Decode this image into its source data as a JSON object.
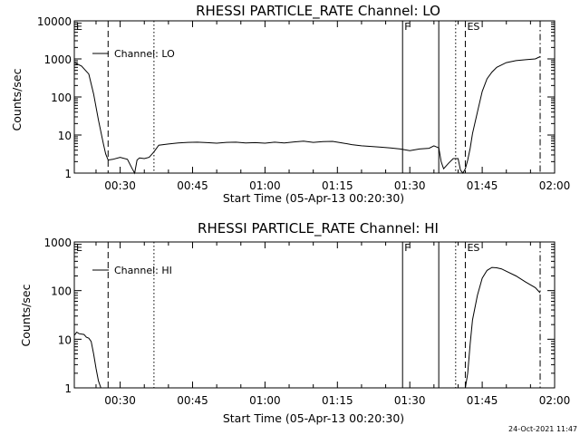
{
  "footer": {
    "timestamp": "24-Oct-2021 11:47"
  },
  "chart_data": [
    {
      "type": "line",
      "title": "RHESSI PARTICLE_RATE Channel: LO",
      "xlabel": "Start Time (05-Apr-13 00:20:30)",
      "ylabel": "Counts/sec",
      "yscale": "log",
      "xlim": [
        "00:20:30",
        "02:00:00"
      ],
      "ylim": [
        1,
        10000
      ],
      "x_ticks": [
        "00:30",
        "00:45",
        "01:00",
        "01:15",
        "01:30",
        "01:45",
        "02:00"
      ],
      "y_ticks": [
        "1",
        "10",
        "100",
        "1000",
        "10000"
      ],
      "legend": "Channel: LO",
      "event_markers": [
        {
          "time": "00:20:30",
          "label": "E",
          "style": "solid"
        },
        {
          "time": "00:27:30",
          "label": "",
          "style": "dashed"
        },
        {
          "time": "00:37:00",
          "label": "",
          "style": "dotted"
        },
        {
          "time": "01:28:30",
          "label": "F",
          "style": "solid"
        },
        {
          "time": "01:36:00",
          "label": "",
          "style": "solid"
        },
        {
          "time": "01:39:30",
          "label": "",
          "style": "dotted"
        },
        {
          "time": "01:41:30",
          "label": "ES",
          "style": "dashed"
        },
        {
          "time": "01:57:00",
          "label": "",
          "style": "dashdot"
        }
      ],
      "series": [
        {
          "name": "Channel: LO",
          "x": [
            "00:20:30",
            "00:22:00",
            "00:23:30",
            "00:24:30",
            "00:25:30",
            "00:26:30",
            "00:27:00",
            "00:27:30",
            "00:28:30",
            "00:30:00",
            "00:31:30",
            "00:32:30",
            "00:33:00",
            "00:33:30",
            "00:34:00",
            "00:35:00",
            "00:36:00",
            "00:37:00",
            "00:38:00",
            "00:40:00",
            "00:42:00",
            "00:44:00",
            "00:46:00",
            "00:48:00",
            "00:50:00",
            "00:52:00",
            "00:54:00",
            "00:56:00",
            "00:58:00",
            "01:00:00",
            "01:02:00",
            "01:04:00",
            "01:06:00",
            "01:08:00",
            "01:10:00",
            "01:12:00",
            "01:14:00",
            "01:16:00",
            "01:18:00",
            "01:20:00",
            "01:22:00",
            "01:24:00",
            "01:26:00",
            "01:28:00",
            "01:30:00",
            "01:32:00",
            "01:34:00",
            "01:35:00",
            "01:36:00",
            "01:36:30",
            "01:37:00",
            "01:38:00",
            "01:39:00",
            "01:40:00",
            "01:40:30",
            "01:41:00",
            "01:41:30",
            "01:42:00",
            "01:42:30",
            "01:43:00",
            "01:44:00",
            "01:45:00",
            "01:46:00",
            "01:47:00",
            "01:48:00",
            "01:50:00",
            "01:52:00",
            "01:54:00",
            "01:56:00",
            "01:57:00"
          ],
          "y": [
            800,
            650,
            400,
            120,
            25,
            6,
            3.2,
            2.2,
            2.3,
            2.6,
            2.3,
            1.3,
            1,
            2.2,
            2.5,
            2.4,
            2.6,
            3.6,
            5.4,
            5.8,
            6.2,
            6.4,
            6.5,
            6.3,
            6.1,
            6.4,
            6.5,
            6.2,
            6.3,
            6.1,
            6.5,
            6.2,
            6.6,
            6.9,
            6.4,
            6.7,
            6.8,
            6.2,
            5.6,
            5.2,
            5.0,
            4.8,
            4.6,
            4.3,
            3.9,
            4.3,
            4.5,
            5.2,
            4.6,
            2.0,
            1.3,
            1.8,
            2.4,
            2.4,
            1.2,
            1.0,
            1.3,
            2.2,
            4.5,
            11,
            40,
            140,
            300,
            450,
            600,
            800,
            900,
            950,
            1000,
            1150
          ]
        }
      ]
    },
    {
      "type": "line",
      "title": "RHESSI PARTICLE_RATE Channel: HI",
      "xlabel": "Start Time (05-Apr-13 00:20:30)",
      "ylabel": "Counts/sec",
      "yscale": "log",
      "xlim": [
        "00:20:30",
        "02:00:00"
      ],
      "ylim": [
        1,
        1000
      ],
      "x_ticks": [
        "00:30",
        "00:45",
        "01:00",
        "01:15",
        "01:30",
        "01:45",
        "02:00"
      ],
      "y_ticks": [
        "1",
        "10",
        "100",
        "1000"
      ],
      "legend": "Channel: HI",
      "event_markers": [
        {
          "time": "00:20:30",
          "label": "E",
          "style": "solid"
        },
        {
          "time": "00:27:30",
          "label": "",
          "style": "dashed"
        },
        {
          "time": "00:37:00",
          "label": "",
          "style": "dotted"
        },
        {
          "time": "01:28:30",
          "label": "F",
          "style": "solid"
        },
        {
          "time": "01:36:00",
          "label": "",
          "style": "solid"
        },
        {
          "time": "01:39:30",
          "label": "",
          "style": "dotted"
        },
        {
          "time": "01:41:30",
          "label": "ES",
          "style": "dashed"
        },
        {
          "time": "01:57:00",
          "label": "",
          "style": "dashdot"
        }
      ],
      "series": [
        {
          "name": "Channel: HI",
          "x": [
            "00:20:30",
            "00:21:00",
            "00:21:30",
            "00:22:30",
            "00:23:00",
            "00:23:30",
            "00:24:00",
            "00:24:30",
            "00:25:00",
            "00:25:30",
            "00:26:00",
            "01:41:30",
            "01:42:00",
            "01:42:30",
            "01:43:00",
            "01:44:00",
            "01:45:00",
            "01:46:00",
            "01:47:00",
            "01:48:00",
            "01:49:00",
            "01:50:00",
            "01:52:00",
            "01:54:00",
            "01:56:00",
            "01:57:00"
          ],
          "y": [
            12,
            14,
            13,
            12.5,
            11,
            10.5,
            9,
            5,
            2.5,
            1.4,
            1,
            1,
            2,
            8,
            25,
            80,
            180,
            260,
            300,
            295,
            280,
            250,
            200,
            150,
            115,
            90
          ]
        }
      ]
    }
  ]
}
